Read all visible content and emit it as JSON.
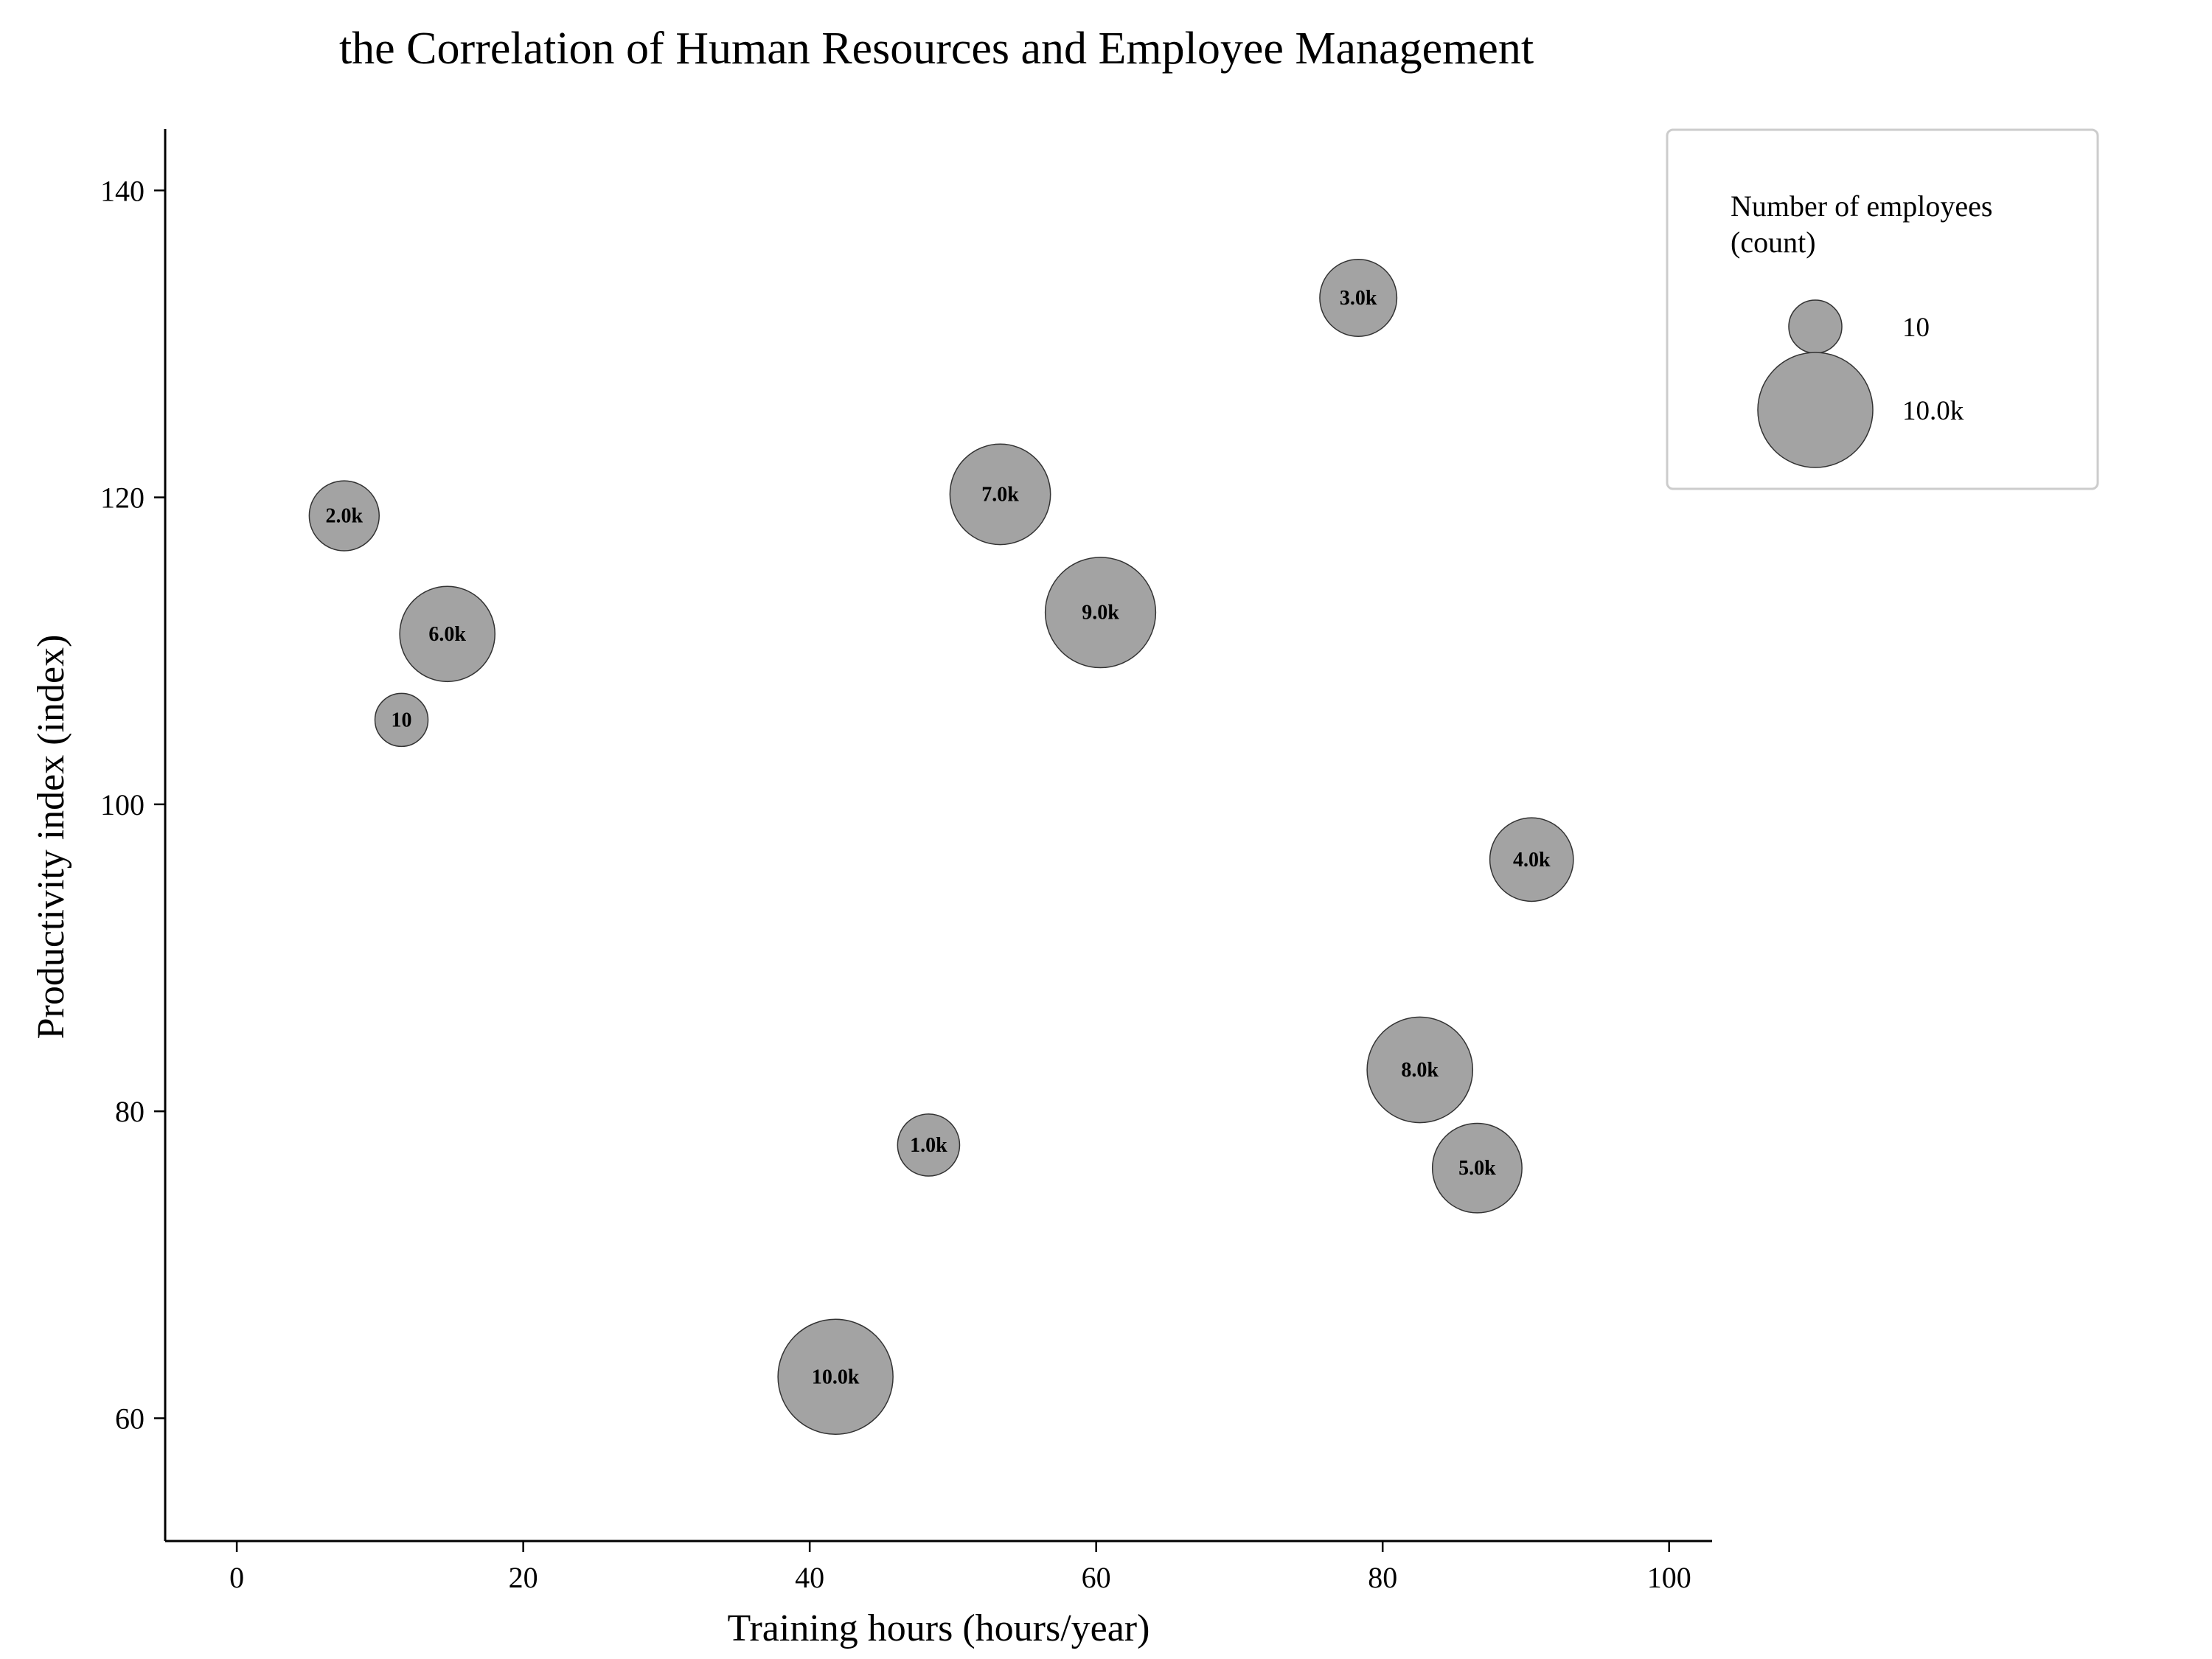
{
  "chart_data": {
    "type": "scatter",
    "title": "the Correlation of Human Resources and Employee Management",
    "xlabel": "Training hours (hours/year)",
    "ylabel": "Productivity index (index)",
    "xlim": [
      -5,
      103
    ],
    "ylim": [
      52,
      144
    ],
    "xticks": [
      0,
      20,
      40,
      60,
      80,
      100
    ],
    "yticks": [
      60,
      80,
      100,
      120,
      140
    ],
    "grid": false,
    "legend_position": "top-right",
    "size_legend": {
      "title_lines": [
        "Number of employees",
        "(count)"
      ],
      "entries": [
        {
          "label": "10",
          "size": 10
        },
        {
          "label": "10.0k",
          "size": 10000
        }
      ]
    },
    "points": [
      {
        "x": 7.5,
        "y": 118.8,
        "size": 2000,
        "label": "2.0k"
      },
      {
        "x": 14.7,
        "y": 111.1,
        "size": 6000,
        "label": "6.0k"
      },
      {
        "x": 11.5,
        "y": 105.5,
        "size": 10,
        "label": "10"
      },
      {
        "x": 53.3,
        "y": 120.2,
        "size": 7000,
        "label": "7.0k"
      },
      {
        "x": 60.3,
        "y": 112.5,
        "size": 9000,
        "label": "9.0k"
      },
      {
        "x": 78.3,
        "y": 133.0,
        "size": 3000,
        "label": "3.0k"
      },
      {
        "x": 90.4,
        "y": 96.4,
        "size": 4000,
        "label": "4.0k"
      },
      {
        "x": 82.6,
        "y": 82.7,
        "size": 8000,
        "label": "8.0k"
      },
      {
        "x": 86.6,
        "y": 76.3,
        "size": 5000,
        "label": "5.0k"
      },
      {
        "x": 48.3,
        "y": 77.8,
        "size": 1000,
        "label": "1.0k"
      },
      {
        "x": 41.8,
        "y": 62.7,
        "size": 10000,
        "label": "10.0k"
      }
    ]
  }
}
